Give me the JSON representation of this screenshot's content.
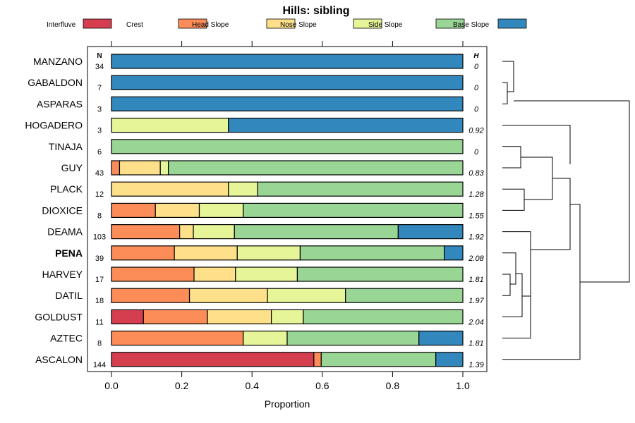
{
  "chart_data": {
    "type": "bar",
    "orientation": "horizontal-stacked",
    "title": "Hills: sibling",
    "xlabel": "Proportion",
    "xlim": [
      0,
      1
    ],
    "xticks": [
      "0.0",
      "0.2",
      "0.4",
      "0.6",
      "0.8",
      "1.0"
    ],
    "n_header": "N",
    "h_header": "H",
    "highlighted_site": "PENA",
    "legend_position": "top",
    "series": [
      {
        "name": "Interfluve",
        "color": "#d53e4f"
      },
      {
        "name": "Crest",
        "color": "#fc8d59"
      },
      {
        "name": "Head Slope",
        "color": "#fee08b"
      },
      {
        "name": "Nose Slope",
        "color": "#e6f598"
      },
      {
        "name": "Side Slope",
        "color": "#99d594"
      },
      {
        "name": "Base Slope",
        "color": "#3288bd"
      }
    ],
    "rows": [
      {
        "site": "MANZANO",
        "n": "34",
        "h": "0",
        "values": [
          0,
          0,
          0,
          0,
          0,
          1.0
        ]
      },
      {
        "site": "GABALDON",
        "n": "7",
        "h": "0",
        "values": [
          0,
          0,
          0,
          0,
          0,
          1.0
        ]
      },
      {
        "site": "ASPARAS",
        "n": "3",
        "h": "0",
        "values": [
          0,
          0,
          0,
          0,
          0,
          1.0
        ]
      },
      {
        "site": "HOGADERO",
        "n": "3",
        "h": "0.92",
        "values": [
          0,
          0,
          0,
          0.333,
          0,
          0.667
        ]
      },
      {
        "site": "TINAJA",
        "n": "6",
        "h": "0",
        "values": [
          0,
          0,
          0,
          0,
          1.0,
          0
        ]
      },
      {
        "site": "GUY",
        "n": "43",
        "h": "0.83",
        "values": [
          0,
          0.023,
          0.116,
          0.023,
          0.838,
          0
        ]
      },
      {
        "site": "PLACK",
        "n": "12",
        "h": "1.28",
        "values": [
          0,
          0,
          0.333,
          0.083,
          0.584,
          0
        ]
      },
      {
        "site": "DIOXICE",
        "n": "8",
        "h": "1.55",
        "values": [
          0,
          0.125,
          0.125,
          0.125,
          0.625,
          0
        ]
      },
      {
        "site": "DEAMA",
        "n": "103",
        "h": "1.92",
        "values": [
          0,
          0.194,
          0.039,
          0.117,
          0.466,
          0.184
        ]
      },
      {
        "site": "PENA",
        "n": "39",
        "h": "2.08",
        "values": [
          0,
          0.179,
          0.179,
          0.179,
          0.41,
          0.053
        ]
      },
      {
        "site": "HARVEY",
        "n": "17",
        "h": "1.81",
        "values": [
          0,
          0.235,
          0.118,
          0.176,
          0.471,
          0
        ]
      },
      {
        "site": "DATIL",
        "n": "18",
        "h": "1.97",
        "values": [
          0,
          0.222,
          0.222,
          0.222,
          0.334,
          0
        ]
      },
      {
        "site": "GOLDUST",
        "n": "11",
        "h": "2.04",
        "values": [
          0.091,
          0.182,
          0.182,
          0.091,
          0.454,
          0
        ]
      },
      {
        "site": "AZTEC",
        "n": "8",
        "h": "1.81",
        "values": [
          0,
          0.375,
          0,
          0.125,
          0.375,
          0.125
        ]
      },
      {
        "site": "ASCALON",
        "n": "144",
        "h": "1.39",
        "values": [
          0.576,
          0.021,
          0,
          0,
          0.326,
          0.077
        ]
      }
    ]
  }
}
